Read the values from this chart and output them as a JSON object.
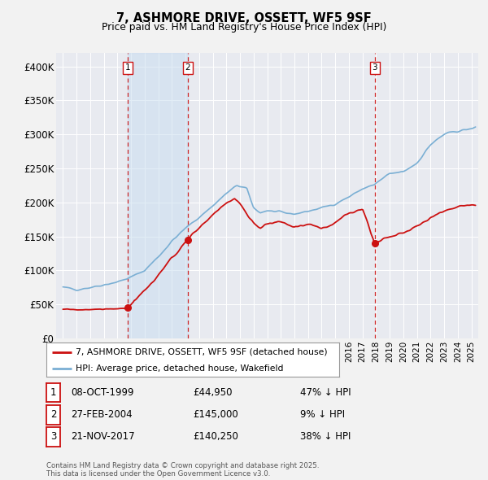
{
  "title": "7, ASHMORE DRIVE, OSSETT, WF5 9SF",
  "subtitle": "Price paid vs. HM Land Registry's House Price Index (HPI)",
  "background_color": "#f2f2f2",
  "plot_bg_color": "#e8eaf0",
  "grid_color": "#ffffff",
  "hpi_color": "#7aafd4",
  "hpi_fill_color": "#c8ddf0",
  "price_color": "#cc1111",
  "transactions": [
    {
      "num": 1,
      "date": "08-OCT-1999",
      "price": 44950,
      "year": 1999.77,
      "hpi_pct": "47% ↓ HPI"
    },
    {
      "num": 2,
      "date": "27-FEB-2004",
      "price": 145000,
      "year": 2004.16,
      "hpi_pct": "9% ↓ HPI"
    },
    {
      "num": 3,
      "date": "21-NOV-2017",
      "price": 140250,
      "year": 2017.89,
      "hpi_pct": "38% ↓ HPI"
    }
  ],
  "legend_line1": "7, ASHMORE DRIVE, OSSETT, WF5 9SF (detached house)",
  "legend_line2": "HPI: Average price, detached house, Wakefield",
  "footer": "Contains HM Land Registry data © Crown copyright and database right 2025.\nThis data is licensed under the Open Government Licence v3.0.",
  "xlim": [
    1994.5,
    2025.5
  ],
  "ylim": [
    0,
    420000
  ],
  "yticks": [
    0,
    50000,
    100000,
    150000,
    200000,
    250000,
    300000,
    350000,
    400000
  ],
  "ytick_labels": [
    "£0",
    "£50K",
    "£100K",
    "£150K",
    "£200K",
    "£250K",
    "£300K",
    "£350K",
    "£400K"
  ]
}
